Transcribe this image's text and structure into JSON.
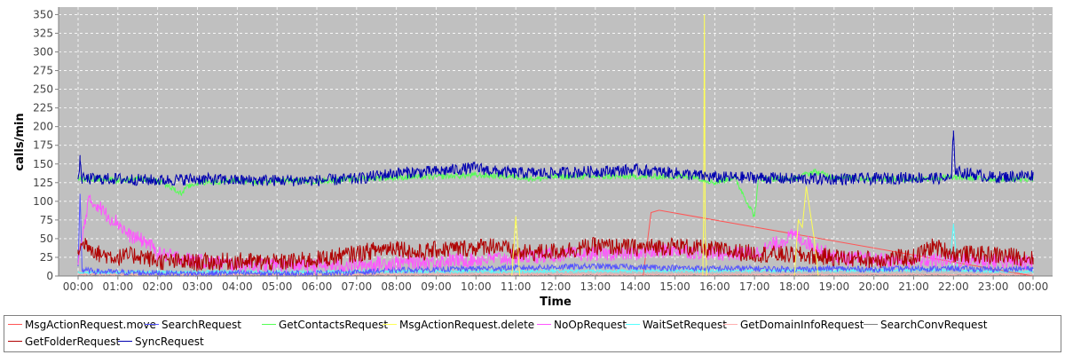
{
  "chart_data": {
    "type": "line",
    "title": "",
    "xlabel": "Time",
    "ylabel": "calls/min",
    "ylim": [
      0,
      360
    ],
    "yticks": [
      0,
      25,
      50,
      75,
      100,
      125,
      150,
      175,
      200,
      225,
      250,
      275,
      300,
      325,
      350
    ],
    "xticks": [
      "00:00",
      "01:00",
      "02:00",
      "03:00",
      "04:00",
      "05:00",
      "06:00",
      "07:00",
      "08:00",
      "09:00",
      "10:00",
      "11:00",
      "12:00",
      "13:00",
      "14:00",
      "15:00",
      "16:00",
      "17:00",
      "18:00",
      "19:00",
      "20:00",
      "21:00",
      "22:00",
      "23:00",
      "00:00"
    ],
    "x_range_hours": [
      0,
      24
    ],
    "grid": true,
    "legend_position": "bottom",
    "background_color": "#c0c0c0",
    "series": [
      {
        "name": "MsgActionRequest.move",
        "color": "#ff5555",
        "x": [
          0,
          14.2,
          14.4,
          14.6,
          24
        ],
        "y": [
          0,
          0,
          85,
          88,
          0
        ]
      },
      {
        "name": "SearchRequest",
        "color": "#5555ff",
        "x": [
          0,
          0.05,
          0.1,
          0.5,
          1,
          2,
          3,
          4,
          5,
          6,
          7,
          8,
          9,
          10,
          11,
          12,
          13,
          14,
          15,
          16,
          17,
          18,
          19,
          20,
          21,
          22,
          23,
          24
        ],
        "y": [
          15,
          110,
          8,
          6,
          5,
          4,
          3,
          4,
          3,
          4,
          5,
          8,
          9,
          10,
          11,
          12,
          13,
          12,
          11,
          10,
          10,
          9,
          10,
          9,
          10,
          10,
          9,
          10
        ]
      },
      {
        "name": "GetContactsRequest",
        "color": "#55ff55",
        "x": [
          0,
          0.5,
          1,
          1.5,
          2,
          2.6,
          2.7,
          3,
          4,
          4.5,
          5,
          6,
          7,
          8,
          9,
          10,
          11,
          11.5,
          12,
          13,
          14,
          15,
          15.5,
          16,
          16.5,
          17,
          17.1,
          17.5,
          18,
          18.5,
          19,
          20,
          21,
          22,
          23,
          24
        ],
        "y": [
          130,
          130,
          128,
          130,
          128,
          110,
          118,
          125,
          128,
          125,
          128,
          127,
          130,
          132,
          133,
          135,
          133,
          130,
          133,
          133,
          133,
          133,
          133,
          125,
          132,
          80,
          130,
          130,
          130,
          140,
          132,
          130,
          130,
          132,
          130,
          130
        ]
      },
      {
        "name": "MsgActionRequest.delete",
        "color": "#ffff55",
        "x": [
          0,
          10.9,
          11,
          11.1,
          15.7,
          15.72,
          15.74,
          15.76,
          15.8,
          18,
          18.1,
          18.2,
          18.3,
          18.5,
          18.6,
          24
        ],
        "y": [
          0,
          0,
          80,
          0,
          0,
          80,
          350,
          60,
          0,
          0,
          75,
          65,
          120,
          50,
          0,
          0
        ]
      },
      {
        "name": "NoOpRequest",
        "color": "#ff55ff",
        "x": [
          0,
          0.25,
          0.5,
          0.75,
          1,
          1.25,
          1.5,
          1.75,
          2,
          3,
          4,
          5,
          6,
          7,
          8,
          9,
          10,
          11,
          12,
          13,
          14,
          15,
          16,
          17,
          18,
          19,
          20,
          21,
          22,
          23,
          24
        ],
        "y": [
          15,
          100,
          95,
          80,
          72,
          55,
          50,
          45,
          30,
          20,
          15,
          15,
          14,
          15,
          18,
          20,
          22,
          25,
          28,
          30,
          30,
          35,
          30,
          30,
          55,
          25,
          22,
          20,
          22,
          20,
          18
        ]
      },
      {
        "name": "WaitSetRequest",
        "color": "#55ffff",
        "x": [
          0,
          21.9,
          22,
          22.1,
          24
        ],
        "y": [
          5,
          8,
          70,
          8,
          5
        ]
      },
      {
        "name": "GetDomainInfoRequest",
        "color": "#ffafaf",
        "x": [
          0,
          24
        ],
        "y": [
          2,
          2
        ]
      },
      {
        "name": "SearchConvRequest",
        "color": "#808080",
        "x": [
          0,
          24
        ],
        "y": [
          1,
          1
        ]
      },
      {
        "name": "GetFolderRequest",
        "color": "#b00000",
        "x": [
          0,
          0.2,
          0.5,
          1,
          1.5,
          2,
          3,
          4,
          5,
          6,
          7,
          7.5,
          8,
          8.5,
          9,
          10,
          10.5,
          11,
          12,
          13,
          14,
          15,
          16,
          17,
          18,
          19,
          20,
          21,
          21.5,
          22,
          23,
          24
        ],
        "y": [
          35,
          45,
          30,
          25,
          28,
          20,
          18,
          20,
          18,
          22,
          30,
          35,
          40,
          30,
          35,
          38,
          42,
          30,
          33,
          40,
          38,
          40,
          35,
          30,
          28,
          25,
          22,
          25,
          40,
          30,
          28,
          25
        ]
      },
      {
        "name": "SyncRequest",
        "color": "#0000b0",
        "x": [
          0,
          0.05,
          0.1,
          1,
          2,
          3,
          4,
          5,
          6,
          7,
          8,
          9,
          10,
          10.5,
          11,
          12,
          13,
          14,
          15,
          16,
          17,
          18,
          19,
          20,
          21,
          21.95,
          22,
          22.05,
          23,
          24
        ],
        "y": [
          130,
          155,
          130,
          130,
          128,
          130,
          128,
          128,
          128,
          130,
          138,
          140,
          145,
          140,
          138,
          138,
          140,
          142,
          138,
          132,
          132,
          130,
          130,
          130,
          132,
          130,
          195,
          140,
          132,
          135
        ]
      }
    ]
  }
}
